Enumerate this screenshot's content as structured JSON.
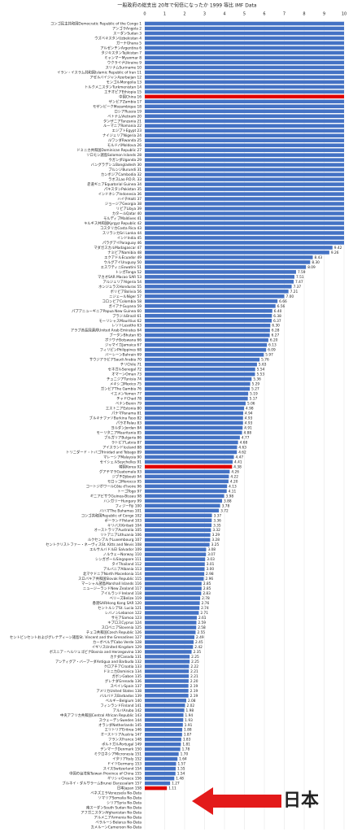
{
  "chart_data": {
    "type": "bar",
    "orientation": "horizontal",
    "title": "一般政府の総支出 20年で何倍になったか 1999 等比 IMF Data",
    "annotation": "日本",
    "xlim": [
      0,
      10
    ],
    "xticks": [
      0,
      1,
      2,
      3,
      4,
      5,
      6,
      7,
      8,
      9,
      10
    ],
    "grid": true,
    "categories": [
      "コンゴ民主共和国Democratic Republic of the Congo 1",
      "アンゴラAngola 2",
      "スーダンSudan 3",
      "ウズベキスタンUzbekistan 4",
      "ガーナGhana 5",
      "アルゼンチンArgentina 6",
      "タジキスタンTajikistan 7",
      "ミャンマーMyanmar 8",
      "ウクライナUkraine 9",
      "スリナムSuriname 10",
      "イラン・イスラム共和国Islamic Republic of Iran 11",
      "アゼルバイジャンAzerbaijan 12",
      "モンゴルMongolia 13",
      "トルクメニスタンTurkmenistan 14",
      "エチオピアEthiopia 15",
      "中国China 16",
      "ザンビアZambia 17",
      "モザンビークMozambique 18",
      "ロシアRussia 19",
      "ベトナムVietnam 20",
      "タンザニアTanzania 21",
      "ルーマニアRomania 22",
      "エジプトEgypt 23",
      "ナイジェリアNigeria 24",
      "ルワンダRwanda 25",
      "モルドバMoldova 26",
      "ドミニカ共和国Dominican Republic 27",
      "ソロモン諸島Solomon Islands 28",
      "ウガンダUganda 29",
      "バングラデシュBangladesh 30",
      "ブルンジBurundi 31",
      "カンボジアCambodia 32",
      "ラオスLao P.D.R. 33",
      "赤道ギニアEquatorial Guinea 34",
      "パキスタンPakistan 35",
      "インドネシアIndonesia 36",
      "ハイチHaiti 37",
      "ジョージアGeorgia 38",
      "リビアLibya 39",
      "カタールQatar 40",
      "モルディブMaldives 41",
      "キルギス共和国Kyrgyz Republic 42",
      "コスタリカCosta Rica 43",
      "スリランカSri Lanka 44",
      "インドIndia 45",
      "パラグアイParaguay 46",
      "マダガスカルMadagascar 47",
      "ナミビアNamibia 48",
      "エクアドルEcuador 49",
      "ウルグアイUruguay 50",
      "エスワティニEswatini 51",
      "トンガTonga 52",
      "マカオSAR Macao SAR 53",
      "アルジェリアAlgeria 54",
      "ホンジュラスHonduras 55",
      "ボリビアBolivia 56",
      "ニジェールNiger 57",
      "コロンビアColombia 58",
      "ガイアナGuyana 59",
      "パプアニューギニアPapua New Guinea 60",
      "ブラジルBrazil 61",
      "モーリシャスMauritius 62",
      "レソトLesotho 63",
      "アラブ首長国連邦United Arab Emirates 64",
      "ブータンBhutan 65",
      "ボツワナBotswana 66",
      "ジャマイカJamaica 67",
      "フィリピンPhilippines 68",
      "バーレーンBahrain 69",
      "サウジアラビアSaudi Arabia 70",
      "チリChile 71",
      "セネガルSenegal 72",
      "オマーンOman 73",
      "チュニジアTunisia 74",
      "メキシコMexico 75",
      "ガンビアThe Gambia 76",
      "イエメンYemen 77",
      "チャドChad 78",
      "ベナンBenin 79",
      "エストニアEstonia 80",
      "パナマPanama 81",
      "ブルキナファソBurkina Faso 82",
      "パラオPalau 83",
      "ヨルダンJordan 84",
      "モーリタニアMauritania 85",
      "ブルガリアBulgaria 86",
      "ラトビアLatvia 87",
      "アイスランドIceland 88",
      "トリニダード・トバゴTrinidad and Tobago 89",
      "マレーシアMalaysia 90",
      "セイシェルSeychelles 91",
      "韓国Korea 92",
      "グアテマラGuatemala 93",
      "ジブチDjibouti 94",
      "モロッコMorocco 95",
      "コートジボワールCôte d'Ivoire 96",
      "トーゴTogo 97",
      "ギニアビサウGuinea-Bissau 98",
      "ハンガリーHungary 99",
      "フィジーFiji 100",
      "バハマThe Bahamas 101",
      "コンゴ共和国Republic of Congo 102",
      "ポーランドPoland 103",
      "キリバスKiribati 104",
      "オーストラリアAustralia 105",
      "リトアニアLithuania 106",
      "ルクセンブルクLuxembourg 107",
      "セントクリストファー・ネーヴィスSt. Kitts and Nevis 108",
      "エルサルバドルEl Salvador 109",
      "ノルウェーNorway 110",
      "シンガポールSingapore 111",
      "タイThailand 112",
      "アルバニアAlbania 113",
      "北マケドニアNorth Macedonia 114",
      "スロバキア共和国Slovak Republic 115",
      "マーシャル諸島Marshall Islands 116",
      "ニュージーランドNew Zealand 117",
      "アイルランドIreland 118",
      "ベリーズBelize 119",
      "香港SARHong Kong SAR 120",
      "セントルシアSt. Lucia 121",
      "レバノンLebanon 122",
      "サモアSamoa 123",
      "キプロスCyprus 124",
      "スロベニアSlovenia 125",
      "チェコ共和国Czech Republic 126",
      "セントビンセントおよびグレナディーン諸島St. Vincent and the Grenadines 127",
      "カーボベルデCabo Verde 128",
      "イギリスUnited Kingdom 129",
      "ボスニア・ヘルツェゴビナBosnia and Herzegovina 130",
      "カナダCanada 131",
      "アンティグア・バーブーダAntigua and Barbuda 132",
      "クロアチアCroatia 133",
      "ドミニカDominica 134",
      "ガボンGabon 135",
      "グレナダGrenada 136",
      "スペインSpain 137",
      "アメリカUnited States 138",
      "バルバドスBarbados 139",
      "ベルギーBelgium 140",
      "フィンランドFinland 141",
      "アルバAruba 142",
      "中央アフリカ共和国Central African Republic 143",
      "スウェーデンSweden 144",
      "オランダNetherlands 145",
      "エリトリアEritrea 146",
      "オーストリアAustria 147",
      "フランスFrance 148",
      "ポルトガルPortugal 149",
      "デンマークDenmark 150",
      "ミクロネシアMicronesia 151",
      "イタリアItaly 152",
      "ドイツGermany 153",
      "スイスSwitzerland 154",
      "中国の台湾省Taiwan Province of China 155",
      "ギリシャGreece 156",
      "ブルネイ・ダルサラームBrunei Darussalam 157",
      "日本Japan 158",
      "ベネズエラVenezuela No-Data",
      "ソマリアSomalia No-Data",
      "シリアSyria No-Data",
      "南スーダンSouth Sudan No-Data",
      "アフガニスタンAfghanistan No-Data",
      "アルメニアArmenia No-Data",
      "ベラルーシBelarus No-Data",
      "カメルーンCameroon No-Data"
    ],
    "values": [
      10,
      10,
      10,
      10,
      10,
      10,
      10,
      10,
      10,
      10,
      10,
      10,
      10,
      10,
      10,
      10,
      10,
      10,
      10,
      10,
      10,
      10,
      10,
      10,
      10,
      10,
      10,
      10,
      10,
      10,
      10,
      10,
      10,
      10,
      10,
      10,
      10,
      10,
      10,
      10,
      10,
      10,
      10,
      10,
      10,
      10,
      9.42,
      9.26,
      8.43,
      8.3,
      8.09,
      7.59,
      7.51,
      7.47,
      7.37,
      7.21,
      7.0,
      6.66,
      6.56,
      6.4,
      6.38,
      6.37,
      6.3,
      6.28,
      6.27,
      6.2,
      6.13,
      6.09,
      5.97,
      5.76,
      5.63,
      5.54,
      5.53,
      5.36,
      5.29,
      5.27,
      5.19,
      5.17,
      5.06,
      4.98,
      4.94,
      4.93,
      4.93,
      4.91,
      4.88,
      4.77,
      4.68,
      4.63,
      4.62,
      4.47,
      4.41,
      4.38,
      4.26,
      4.22,
      4.2,
      4.13,
      4.11,
      3.98,
      3.88,
      3.78,
      3.72,
      3.37,
      3.36,
      3.35,
      3.32,
      3.29,
      3.28,
      3.25,
      3.08,
      3.07,
      3.03,
      3.01,
      3.0,
      2.98,
      2.96,
      2.85,
      2.85,
      2.83,
      2.78,
      2.76,
      2.74,
      2.71,
      2.61,
      2.59,
      2.58,
      2.55,
      2.49,
      2.45,
      2.42,
      2.35,
      2.25,
      2.25,
      2.22,
      2.21,
      2.21,
      2.2,
      2.19,
      2.19,
      2.19,
      2.08,
      2.02,
      1.98,
      1.94,
      1.93,
      1.91,
      1.88,
      1.87,
      1.83,
      1.81,
      1.78,
      1.7,
      1.64,
      1.57,
      1.55,
      1.54,
      1.48,
      1.27,
      1.11,
      null,
      null,
      null,
      null,
      null,
      null,
      null,
      null
    ],
    "value_labels": [
      null,
      null,
      null,
      null,
      null,
      null,
      null,
      null,
      null,
      null,
      null,
      null,
      null,
      null,
      null,
      null,
      null,
      null,
      null,
      null,
      null,
      null,
      null,
      null,
      null,
      null,
      null,
      null,
      null,
      null,
      null,
      null,
      null,
      null,
      null,
      null,
      null,
      null,
      null,
      null,
      null,
      null,
      null,
      null,
      null,
      null,
      "9.42",
      "9.26",
      "8.43",
      "8.30",
      "8.09",
      "7.59",
      "7.51",
      "7.47",
      "7.37",
      "7.21",
      "7.00",
      "6.66",
      "6.56",
      "6.40",
      "6.38",
      "6.37",
      "6.30",
      "6.28",
      "6.27",
      "6.20",
      "6.13",
      "6.09",
      "5.97",
      "5.76",
      "5.63",
      "5.54",
      "5.53",
      "5.36",
      "5.29",
      "5.27",
      "5.19",
      "5.17",
      "5.06",
      "4.98",
      "4.94",
      "4.93",
      "4.93",
      "4.91",
      "4.88",
      "4.77",
      "4.68",
      "4.63",
      "4.62",
      "4.47",
      "4.41",
      "4.38",
      "4.26",
      "4.22",
      "4.20",
      "4.13",
      "4.11",
      "3.98",
      "3.88",
      "3.78",
      "3.72",
      "3.37",
      "3.36",
      "3.35",
      "3.32",
      "3.29",
      "3.28",
      "3.25",
      "3.08",
      "3.07",
      "3.03",
      "3.01",
      "3.00",
      "2.98",
      "2.96",
      "2.85",
      "2.85",
      "2.83",
      "2.78",
      "2.76",
      "2.74",
      "2.71",
      "2.61",
      "2.59",
      "2.58",
      "2.55",
      "2.49",
      "2.45",
      "2.42",
      "2.35",
      "2.25",
      "2.25",
      "2.22",
      "2.21",
      "2.21",
      "2.20",
      "2.19",
      "2.19",
      "2.19",
      "2.08",
      "2.02",
      "1.98",
      "1.94",
      "1.93",
      "1.91",
      "1.88",
      "1.87",
      "1.83",
      "1.81",
      "1.78",
      "1.70",
      "1.64",
      "1.57",
      "1.55",
      "1.54",
      "1.48",
      "1.27",
      "1.11",
      null,
      null,
      null,
      null,
      null,
      null,
      null,
      null
    ],
    "colors": [
      "#4472c4",
      "#4472c4",
      "#4472c4",
      "#4472c4",
      "#4472c4",
      "#4472c4",
      "#4472c4",
      "#4472c4",
      "#4472c4",
      "#4472c4",
      "#4472c4",
      "#4472c4",
      "#4472c4",
      "#4472c4",
      "#4472c4",
      "#e00000",
      "#4472c4",
      "#4472c4",
      "#4472c4",
      "#4472c4",
      "#4472c4",
      "#4472c4",
      "#4472c4",
      "#4472c4",
      "#4472c4",
      "#4472c4",
      "#4472c4",
      "#4472c4",
      "#4472c4",
      "#4472c4",
      "#4472c4",
      "#4472c4",
      "#4472c4",
      "#4472c4",
      "#4472c4",
      "#4472c4",
      "#4472c4",
      "#4472c4",
      "#4472c4",
      "#4472c4",
      "#4472c4",
      "#4472c4",
      "#4472c4",
      "#4472c4",
      "#4472c4",
      "#4472c4",
      "#4472c4",
      "#4472c4",
      "#4472c4",
      "#4472c4",
      "#4472c4",
      "#4472c4",
      "#4472c4",
      "#4472c4",
      "#4472c4",
      "#4472c4",
      "#4472c4",
      "#4472c4",
      "#4472c4",
      "#4472c4",
      "#4472c4",
      "#4472c4",
      "#4472c4",
      "#4472c4",
      "#4472c4",
      "#4472c4",
      "#4472c4",
      "#4472c4",
      "#4472c4",
      "#4472c4",
      "#4472c4",
      "#4472c4",
      "#4472c4",
      "#4472c4",
      "#4472c4",
      "#4472c4",
      "#4472c4",
      "#4472c4",
      "#4472c4",
      "#4472c4",
      "#4472c4",
      "#4472c4",
      "#4472c4",
      "#4472c4",
      "#4472c4",
      "#4472c4",
      "#4472c4",
      "#4472c4",
      "#4472c4",
      "#4472c4",
      "#4472c4",
      "#e00000",
      "#4472c4",
      "#4472c4",
      "#4472c4",
      "#4472c4",
      "#4472c4",
      "#4472c4",
      "#4472c4",
      "#4472c4",
      "#4472c4",
      "#4472c4",
      "#4472c4",
      "#4472c4",
      "#4472c4",
      "#4472c4",
      "#4472c4",
      "#4472c4",
      "#4472c4",
      "#4472c4",
      "#4472c4",
      "#4472c4",
      "#4472c4",
      "#4472c4",
      "#4472c4",
      "#4472c4",
      "#4472c4",
      "#4472c4",
      "#4472c4",
      "#4472c4",
      "#4472c4",
      "#4472c4",
      "#4472c4",
      "#4472c4",
      "#4472c4",
      "#4472c4",
      "#4472c4",
      "#4472c4",
      "#4472c4",
      "#4472c4",
      "#4472c4",
      "#4472c4",
      "#4472c4",
      "#4472c4",
      "#4472c4",
      "#4472c4",
      "#4472c4",
      "#4472c4",
      "#4472c4",
      "#4472c4",
      "#4472c4",
      "#4472c4",
      "#4472c4",
      "#4472c4",
      "#4472c4",
      "#4472c4",
      "#4472c4",
      "#4472c4",
      "#4472c4",
      "#4472c4",
      "#4472c4",
      "#4472c4",
      "#4472c4",
      "#4472c4",
      "#4472c4",
      "#4472c4",
      "#4472c4",
      "#e00000",
      "#4472c4",
      "#4472c4",
      "#4472c4",
      "#4472c4",
      "#4472c4",
      "#4472c4",
      "#4472c4",
      "#4472c4"
    ]
  }
}
